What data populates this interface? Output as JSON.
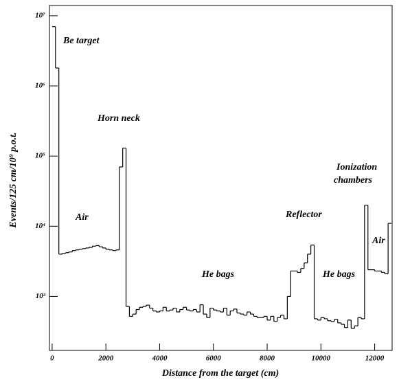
{
  "chart_data": {
    "type": "histogram",
    "xlabel": "Distance from the target (cm)",
    "ylabel": "Events/125 cm/10⁹ p.o.t.",
    "log_y": true,
    "color": "#000000",
    "bins": [
      0,
      125,
      250,
      375,
      500,
      625,
      750,
      875,
      1000,
      1125,
      1250,
      1375,
      1500,
      1625,
      1750,
      1875,
      2000,
      2125,
      2250,
      2375,
      2500,
      2625,
      2750,
      2875,
      3000,
      3125,
      3250,
      3375,
      3500,
      3625,
      3750,
      3875,
      4000,
      4125,
      4250,
      4375,
      4500,
      4625,
      4750,
      4875,
      5000,
      5125,
      5250,
      5375,
      5500,
      5625,
      5750,
      5875,
      6000,
      6125,
      6250,
      6375,
      6500,
      6625,
      6750,
      6875,
      7000,
      7125,
      7250,
      7375,
      7500,
      7625,
      7750,
      7875,
      8000,
      8125,
      8250,
      8375,
      8500,
      8625,
      8750,
      8875,
      9000,
      9125,
      9250,
      9375,
      9500,
      9625,
      9750,
      9875,
      10000,
      10125,
      10250,
      10375,
      10500,
      10625,
      10750,
      10875,
      11000,
      11125,
      11250,
      11375,
      11500,
      11625,
      11750,
      11875,
      12000,
      12125,
      12250,
      12375,
      12500,
      12625
    ],
    "counts": [
      7000000,
      1800000,
      4000,
      4100,
      4200,
      4300,
      4500,
      4600,
      4700,
      4800,
      4900,
      5000,
      5200,
      5300,
      5100,
      4900,
      4700,
      4600,
      4500,
      4600,
      70000,
      130000,
      720,
      520,
      560,
      650,
      700,
      720,
      750,
      680,
      620,
      600,
      620,
      700,
      620,
      640,
      680,
      600,
      650,
      700,
      640,
      620,
      650,
      600,
      760,
      560,
      500,
      680,
      640,
      620,
      600,
      680,
      540,
      620,
      660,
      580,
      560,
      540,
      600,
      560,
      520,
      500,
      500,
      520,
      460,
      520,
      440,
      500,
      540,
      480,
      1000,
      2300,
      2300,
      2200,
      2500,
      3000,
      4000,
      5400,
      480,
      460,
      500,
      480,
      450,
      440,
      470,
      420,
      400,
      360,
      460,
      350,
      380,
      500,
      480,
      20000,
      2400,
      2400,
      2300,
      2300,
      2200,
      2100,
      11000
    ],
    "xlim": [
      -100,
      12650
    ],
    "ylim": [
      170,
      14000000
    ],
    "xticks": [
      0,
      2000,
      4000,
      6000,
      8000,
      10000,
      12000
    ],
    "yticks": [
      {
        "value": 1000,
        "label": "10³"
      },
      {
        "value": 10000,
        "label": "10⁴"
      },
      {
        "value": 100000,
        "label": "10⁵"
      },
      {
        "value": 1000000,
        "label": "10⁶"
      },
      {
        "value": 10000000,
        "label": "10⁷"
      }
    ],
    "annotations": [
      "Be target",
      "Horn neck",
      "Air",
      "Ionization",
      "chambers",
      "Reflector",
      "He bags",
      "He bags",
      "Air"
    ]
  }
}
